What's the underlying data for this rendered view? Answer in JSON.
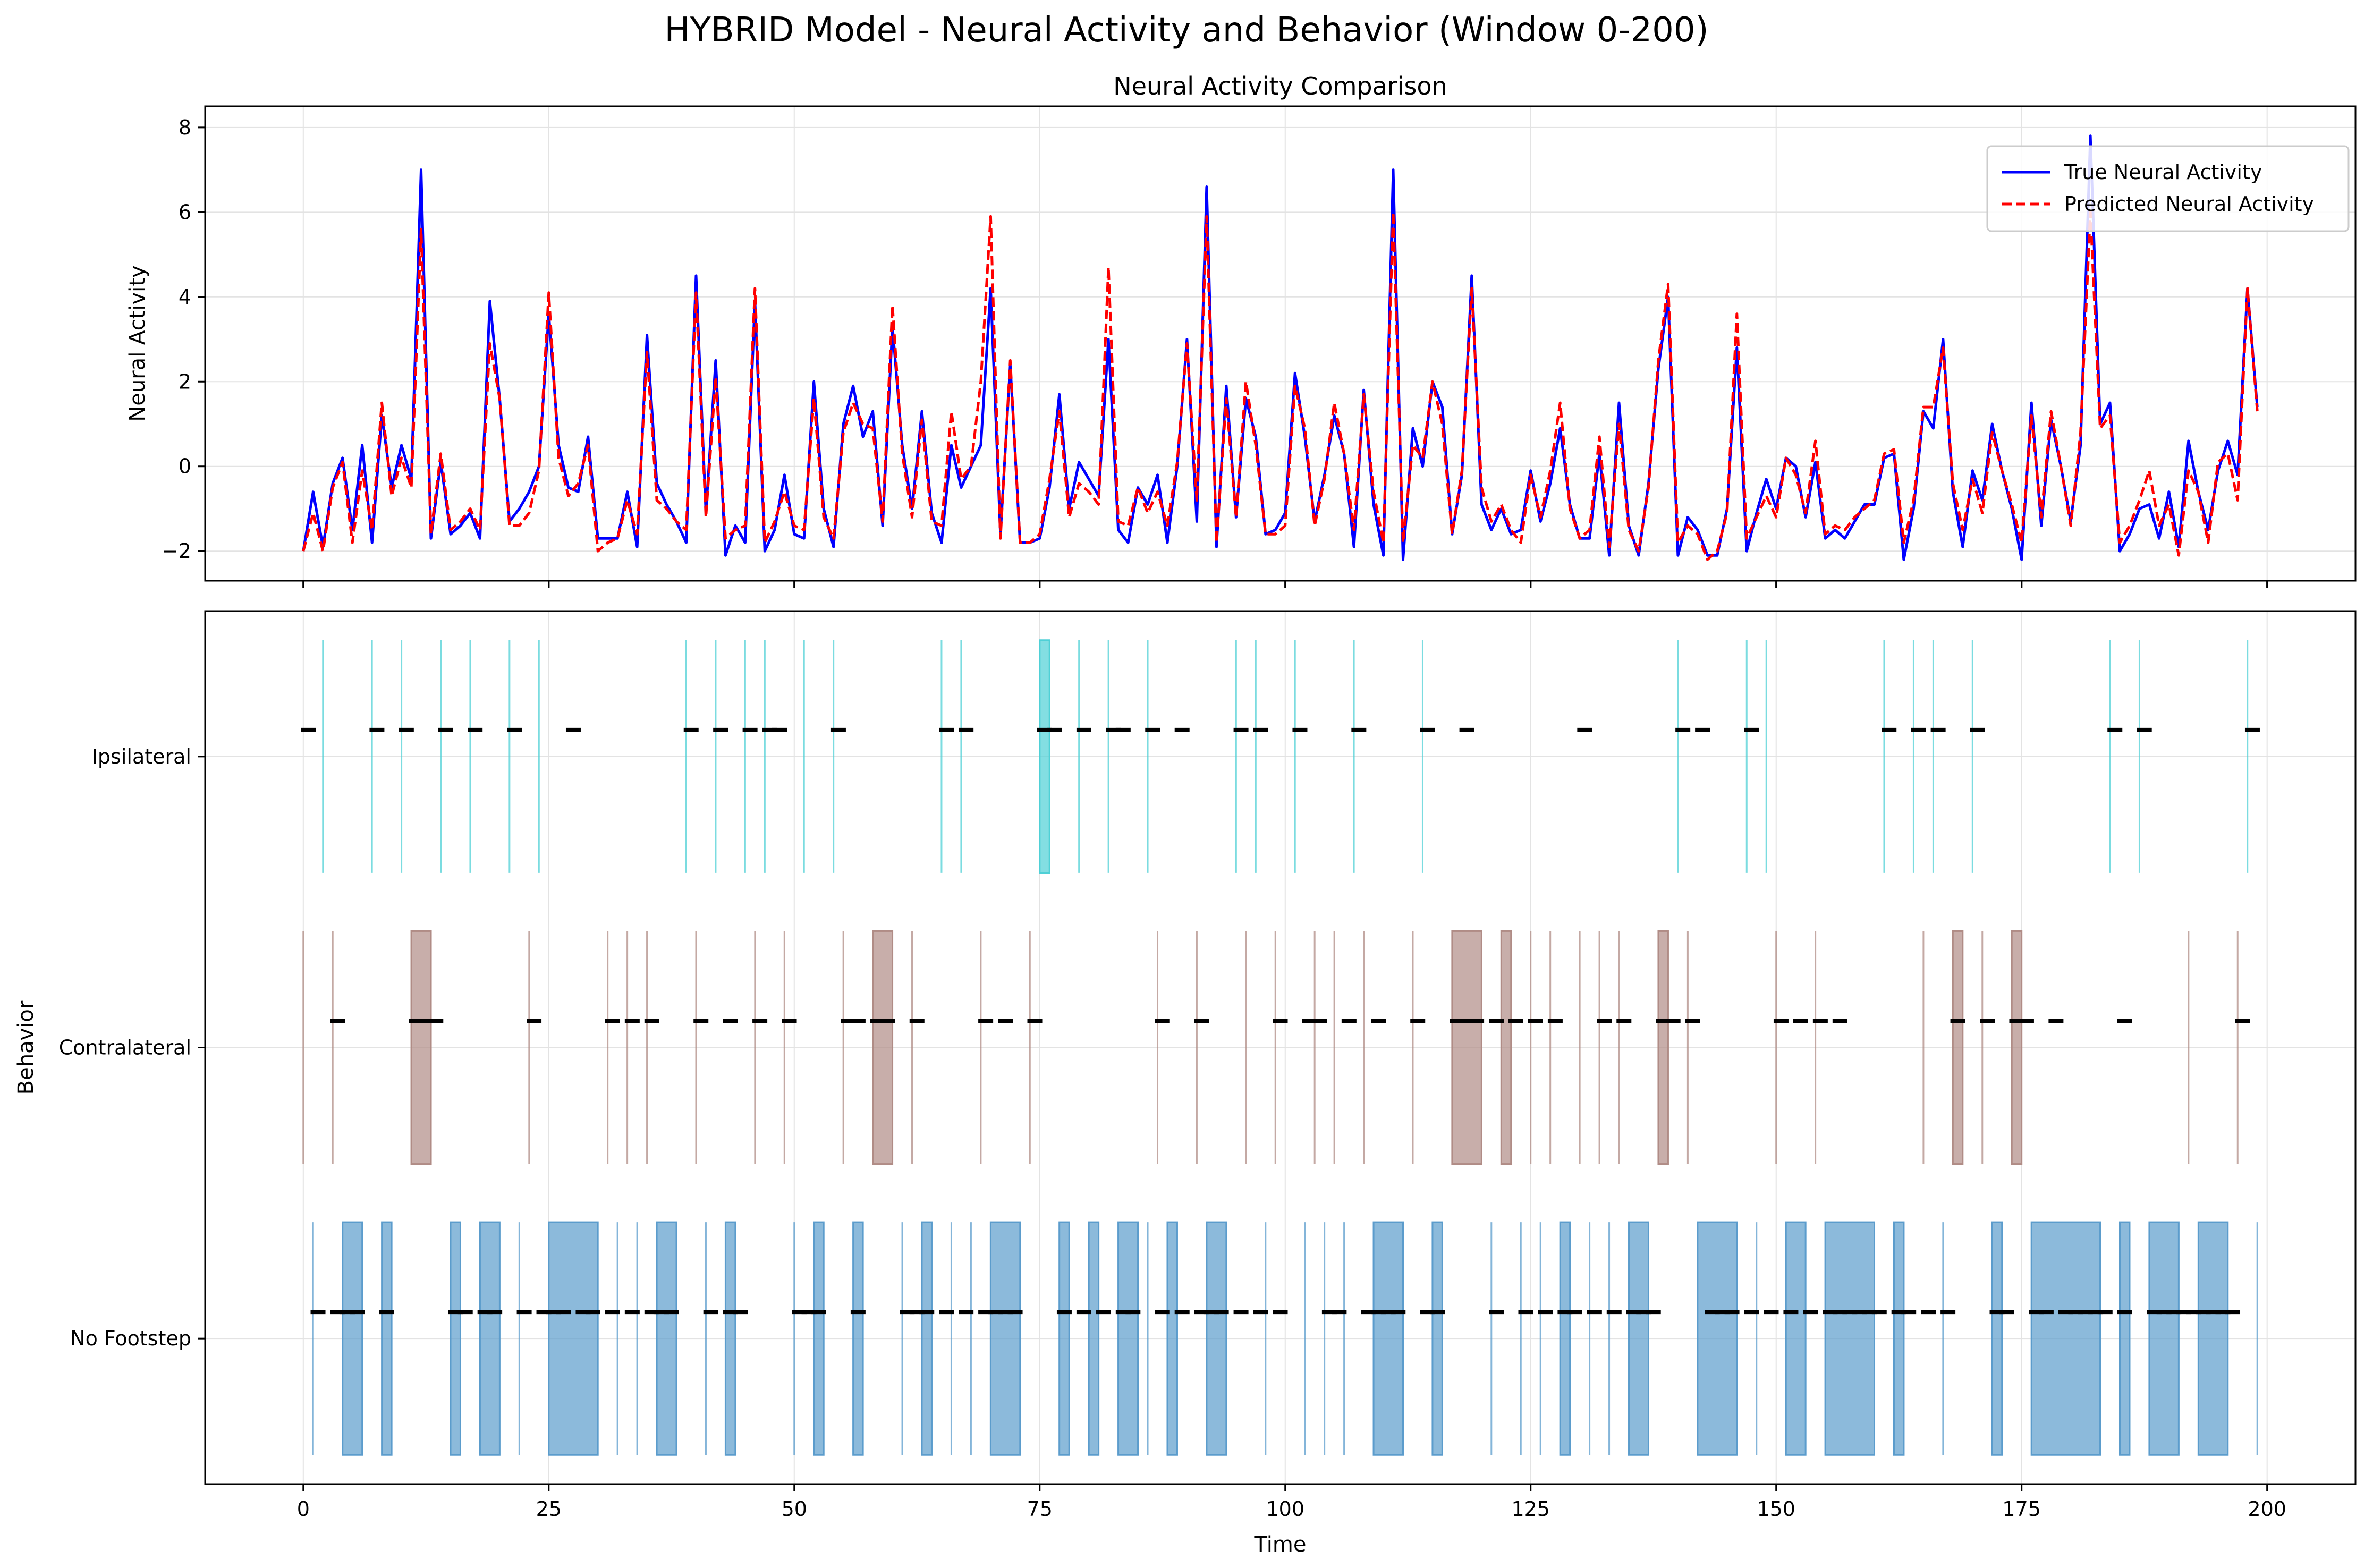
{
  "figure": {
    "title": "HYBRID Model - Neural Activity and Behavior (Window 0-200)"
  },
  "chart_data": [
    {
      "type": "line",
      "title": "Neural Activity Comparison",
      "xlabel": "",
      "ylabel": "Neural Activity",
      "xlim": [
        -10,
        209
      ],
      "ylim": [
        -2.7,
        8.5
      ],
      "xticks": [
        0,
        25,
        50,
        75,
        100,
        125,
        150,
        175,
        200
      ],
      "yticks": [
        -2,
        0,
        2,
        4,
        6,
        8
      ],
      "ytick_labels": [
        "−2",
        "0",
        "2",
        "4",
        "6",
        "8"
      ],
      "grid": true,
      "legend_position": "upper right",
      "x": [
        0,
        1,
        2,
        3,
        4,
        5,
        6,
        7,
        8,
        9,
        10,
        11,
        12,
        13,
        14,
        15,
        16,
        17,
        18,
        19,
        20,
        21,
        22,
        23,
        24,
        25,
        26,
        27,
        28,
        29,
        30,
        31,
        32,
        33,
        34,
        35,
        36,
        37,
        38,
        39,
        40,
        41,
        42,
        43,
        44,
        45,
        46,
        47,
        48,
        49,
        50,
        51,
        52,
        53,
        54,
        55,
        56,
        57,
        58,
        59,
        60,
        61,
        62,
        63,
        64,
        65,
        66,
        67,
        68,
        69,
        70,
        71,
        72,
        73,
        74,
        75,
        76,
        77,
        78,
        79,
        80,
        81,
        82,
        83,
        84,
        85,
        86,
        87,
        88,
        89,
        90,
        91,
        92,
        93,
        94,
        95,
        96,
        97,
        98,
        99,
        100,
        101,
        102,
        103,
        104,
        105,
        106,
        107,
        108,
        109,
        110,
        111,
        112,
        113,
        114,
        115,
        116,
        117,
        118,
        119,
        120,
        121,
        122,
        123,
        124,
        125,
        126,
        127,
        128,
        129,
        130,
        131,
        132,
        133,
        134,
        135,
        136,
        137,
        138,
        139,
        140,
        141,
        142,
        143,
        144,
        145,
        146,
        147,
        148,
        149,
        150,
        151,
        152,
        153,
        154,
        155,
        156,
        157,
        158,
        159,
        160,
        161,
        162,
        163,
        164,
        165,
        166,
        167,
        168,
        169,
        170,
        171,
        172,
        173,
        174,
        175,
        176,
        177,
        178,
        179,
        180,
        181,
        182,
        183,
        184,
        185,
        186,
        187,
        188,
        189,
        190,
        191,
        192,
        193,
        194,
        195,
        196,
        197,
        198,
        199
      ],
      "series": [
        {
          "name": "True Neural Activity",
          "color": "#0000ff",
          "style": "solid",
          "values": [
            -2.0,
            -0.6,
            -1.9,
            -0.4,
            0.2,
            -1.5,
            0.5,
            -1.8,
            1.2,
            -0.5,
            0.5,
            -0.3,
            7.0,
            -1.7,
            0.1,
            -1.6,
            -1.4,
            -1.1,
            -1.7,
            3.9,
            1.6,
            -1.3,
            -1.0,
            -0.6,
            0.0,
            3.6,
            0.5,
            -0.5,
            -0.6,
            0.7,
            -1.7,
            -1.7,
            -1.7,
            -0.6,
            -1.9,
            3.1,
            -0.4,
            -0.9,
            -1.3,
            -1.8,
            4.5,
            -1.1,
            2.5,
            -2.1,
            -1.4,
            -1.8,
            3.9,
            -2.0,
            -1.5,
            -0.2,
            -1.6,
            -1.7,
            2.0,
            -1.0,
            -1.9,
            1.0,
            1.9,
            0.7,
            1.3,
            -1.4,
            3.3,
            0.5,
            -1.0,
            1.3,
            -1.1,
            -1.8,
            0.5,
            -0.5,
            0.0,
            0.5,
            4.2,
            -1.6,
            2.4,
            -1.8,
            -1.8,
            -1.7,
            -0.5,
            1.7,
            -1.0,
            0.1,
            -0.3,
            -0.7,
            3.0,
            -1.5,
            -1.8,
            -0.5,
            -0.9,
            -0.2,
            -1.8,
            0.0,
            3.0,
            -1.3,
            6.6,
            -1.9,
            1.9,
            -1.2,
            1.6,
            0.7,
            -1.6,
            -1.5,
            -1.1,
            2.2,
            0.7,
            -1.3,
            -0.2,
            1.2,
            0.3,
            -1.9,
            1.8,
            -0.9,
            -2.1,
            7.0,
            -2.2,
            0.9,
            0.0,
            2.0,
            1.4,
            -1.6,
            -0.2,
            4.5,
            -0.9,
            -1.5,
            -1.0,
            -1.6,
            -1.5,
            -0.1,
            -1.3,
            -0.4,
            0.9,
            -0.9,
            -1.7,
            -1.7,
            0.3,
            -2.1,
            1.5,
            -1.4,
            -2.1,
            -0.4,
            2.3,
            4.0,
            -2.1,
            -1.2,
            -1.5,
            -2.1,
            -2.1,
            -1.0,
            2.8,
            -2.0,
            -1.1,
            -0.3,
            -1.0,
            0.2,
            0.0,
            -1.2,
            0.1,
            -1.7,
            -1.5,
            -1.7,
            -1.3,
            -0.9,
            -0.9,
            0.2,
            0.3,
            -2.2,
            -1.0,
            1.3,
            0.9,
            3.0,
            -0.6,
            -1.9,
            -0.1,
            -0.8,
            1.0,
            -0.1,
            -1.0,
            -2.2,
            1.5,
            -1.4,
            1.1,
            0.0,
            -1.3,
            0.5,
            7.8,
            1.0,
            1.5,
            -2.0,
            -1.6,
            -1.0,
            -0.9,
            -1.7,
            -0.6,
            -1.9,
            0.6,
            -0.6,
            -1.5,
            -0.1,
            0.6,
            -0.2,
            4.2,
            1.4
          ]
        },
        {
          "name": "Predicted Neural Activity",
          "color": "#ff0000",
          "style": "dashed",
          "values": [
            -2.0,
            -1.1,
            -2.0,
            -0.5,
            0.1,
            -1.8,
            -0.1,
            -1.5,
            1.5,
            -0.7,
            0.2,
            -0.5,
            5.6,
            -1.6,
            0.3,
            -1.5,
            -1.3,
            -1.0,
            -1.5,
            2.9,
            1.6,
            -1.4,
            -1.4,
            -1.1,
            -0.1,
            4.1,
            0.2,
            -0.7,
            -0.4,
            0.5,
            -2.0,
            -1.8,
            -1.7,
            -0.8,
            -1.6,
            2.7,
            -0.8,
            -1.0,
            -1.3,
            -1.5,
            4.1,
            -1.2,
            2.1,
            -1.7,
            -1.5,
            -1.4,
            4.2,
            -1.8,
            -1.3,
            -0.6,
            -1.4,
            -1.5,
            1.6,
            -1.2,
            -1.7,
            0.8,
            1.5,
            1.0,
            0.9,
            -1.3,
            3.8,
            0.3,
            -1.2,
            1.1,
            -1.3,
            -1.4,
            1.3,
            -0.3,
            0.0,
            2.0,
            5.9,
            -1.7,
            2.5,
            -1.8,
            -1.8,
            -1.6,
            -0.3,
            1.3,
            -1.2,
            -0.4,
            -0.6,
            -0.9,
            4.7,
            -1.3,
            -1.4,
            -0.5,
            -1.1,
            -0.6,
            -1.4,
            0.1,
            2.9,
            -0.8,
            5.9,
            -1.8,
            1.6,
            -1.2,
            2.0,
            0.5,
            -1.6,
            -1.6,
            -1.4,
            1.9,
            0.9,
            -1.4,
            -0.3,
            1.5,
            0.3,
            -1.5,
            1.7,
            -0.6,
            -1.8,
            6.0,
            -1.8,
            0.5,
            0.2,
            2.0,
            1.0,
            -1.6,
            -0.1,
            4.2,
            -0.5,
            -1.3,
            -0.9,
            -1.5,
            -1.8,
            -0.2,
            -1.2,
            -0.1,
            1.5,
            -1.0,
            -1.7,
            -1.5,
            0.7,
            -1.9,
            1.0,
            -1.5,
            -2.0,
            -0.5,
            2.5,
            4.3,
            -1.8,
            -1.4,
            -1.6,
            -2.2,
            -2.0,
            -1.1,
            3.6,
            -1.7,
            -1.2,
            -0.7,
            -1.2,
            0.2,
            -0.2,
            -1.1,
            0.6,
            -1.6,
            -1.4,
            -1.5,
            -1.2,
            -1.0,
            -0.8,
            0.3,
            0.4,
            -1.8,
            -0.8,
            1.4,
            1.4,
            2.8,
            -0.4,
            -1.5,
            -0.3,
            -1.1,
            0.8,
            -0.1,
            -0.9,
            -1.8,
            1.2,
            -1.2,
            1.3,
            0.0,
            -1.4,
            0.8,
            6.0,
            0.9,
            1.2,
            -1.8,
            -1.4,
            -0.8,
            -0.1,
            -1.4,
            -0.9,
            -2.1,
            -0.1,
            -0.6,
            -1.8,
            0.1,
            0.3,
            -0.8,
            4.2,
            1.3
          ]
        }
      ]
    },
    {
      "type": "event-raster",
      "title": "",
      "xlabel": "Time",
      "ylabel": "Behavior",
      "xlim": [
        -10,
        209
      ],
      "xticks": [
        0,
        25,
        50,
        75,
        100,
        125,
        150,
        175,
        200
      ],
      "categories": [
        "Ipsilateral",
        "Contralateral",
        "No Footstep"
      ],
      "grid": true,
      "rows": [
        {
          "name": "Ipsilateral",
          "color": "#4fd0d6",
          "marks": [
            2,
            7,
            10,
            14,
            17,
            21,
            24,
            39,
            42,
            45,
            47,
            51,
            54,
            65,
            67,
            75,
            79,
            82,
            86,
            95,
            97,
            101,
            107,
            114,
            140,
            147,
            149,
            161,
            164,
            166,
            170,
            184,
            187,
            198
          ],
          "spans": [
            [
              75,
              76
            ]
          ],
          "markers": [
            0.5,
            7.5,
            10.5,
            14.5,
            17.5,
            21.5,
            27.5,
            39.5,
            42.5,
            45.5,
            47.5,
            48.5,
            54.5,
            65.5,
            67.5,
            75.5,
            76.5,
            79.5,
            82.5,
            83.5,
            86.5,
            89.5,
            95.5,
            97.5,
            101.5,
            107.5,
            114.5,
            118.5,
            130.5,
            140.5,
            142.5,
            147.5,
            161.5,
            164.5,
            166.5,
            170.5,
            184.5,
            187.5,
            198.5
          ]
        },
        {
          "name": "Contralateral",
          "color": "#b08c86",
          "marks": [
            0,
            3,
            23,
            31,
            33,
            35,
            40,
            46,
            49,
            55,
            62,
            69,
            74,
            87,
            91,
            96,
            99,
            103,
            105,
            108,
            113,
            125,
            127,
            130,
            132,
            134,
            141,
            150,
            154,
            165,
            171,
            192,
            197
          ],
          "spans": [
            [
              11,
              13
            ],
            [
              58,
              60
            ],
            [
              117,
              120
            ],
            [
              122,
              123
            ],
            [
              138,
              139
            ],
            [
              168,
              169
            ],
            [
              174,
              175
            ]
          ],
          "markers": [
            3.5,
            11.5,
            12.5,
            13.5,
            23.5,
            31.5,
            33.5,
            35.5,
            40.5,
            43.5,
            46.5,
            49.5,
            55.5,
            56.5,
            58.5,
            59.5,
            62.5,
            69.5,
            71.5,
            74.5,
            87.5,
            91.5,
            99.5,
            102.5,
            103.5,
            106.5,
            109.5,
            113.5,
            117.5,
            118.5,
            119.5,
            121.5,
            123.5,
            125.5,
            127.5,
            132.5,
            134.5,
            138.5,
            139.5,
            141.5,
            150.5,
            152.5,
            154.5,
            156.5,
            168.5,
            171.5,
            174.5,
            175.5,
            178.5,
            185.5,
            197.5
          ]
        },
        {
          "name": "No Footstep",
          "color": "#5b9ccc",
          "marks": [
            1,
            22,
            32,
            34,
            41,
            50,
            61,
            66,
            68,
            86,
            98,
            102,
            104,
            106,
            116,
            121,
            124,
            126,
            131,
            133,
            148,
            167,
            199
          ],
          "spans": [
            [
              4,
              6
            ],
            [
              8,
              9
            ],
            [
              15,
              16
            ],
            [
              18,
              20
            ],
            [
              25,
              30
            ],
            [
              36,
              38
            ],
            [
              43,
              44
            ],
            [
              52,
              53
            ],
            [
              56,
              57
            ],
            [
              63,
              64
            ],
            [
              70,
              73
            ],
            [
              77,
              78
            ],
            [
              80,
              81
            ],
            [
              83,
              85
            ],
            [
              88,
              89
            ],
            [
              92,
              94
            ],
            [
              109,
              112
            ],
            [
              115,
              116
            ],
            [
              128,
              129
            ],
            [
              135,
              137
            ],
            [
              142,
              146
            ],
            [
              151,
              153
            ],
            [
              155,
              160
            ],
            [
              162,
              163
            ],
            [
              172,
              173
            ],
            [
              176,
              183
            ],
            [
              185,
              186
            ],
            [
              188,
              191
            ],
            [
              193,
              196
            ]
          ],
          "markers": [
            1.5,
            3.5,
            4.5,
            5.5,
            8.5,
            15.5,
            16.5,
            18.5,
            19.5,
            22.5,
            24.5,
            25.5,
            26.5,
            28.5,
            29.5,
            31.5,
            33.5,
            35.5,
            36.5,
            37.5,
            41.5,
            43.5,
            44.5,
            50.5,
            51.5,
            52.5,
            56.5,
            61.5,
            62.5,
            63.5,
            65.5,
            67.5,
            69.5,
            70.5,
            71.5,
            72.5,
            77.5,
            79.5,
            81.5,
            83.5,
            84.5,
            87.5,
            89.5,
            91.5,
            92.5,
            93.5,
            95.5,
            97.5,
            99.5,
            104.5,
            105.5,
            108.5,
            109.5,
            110.5,
            111.5,
            114.5,
            115.5,
            121.5,
            124.5,
            126.5,
            128.5,
            129.5,
            131.5,
            133.5,
            135.5,
            136.5,
            137.5,
            143.5,
            144.5,
            145.5,
            147.5,
            149.5,
            151.5,
            153.5,
            155.5,
            156.5,
            157.5,
            158.5,
            159.5,
            160.5,
            162.5,
            163.5,
            165.5,
            167.5,
            172.5,
            173.5,
            176.5,
            177.5,
            179.5,
            180.5,
            181.5,
            182.5,
            183.5,
            185.5,
            188.5,
            189.5,
            190.5,
            191.5,
            192.5,
            193.5,
            194.5,
            195.5,
            196.5
          ]
        }
      ]
    }
  ]
}
